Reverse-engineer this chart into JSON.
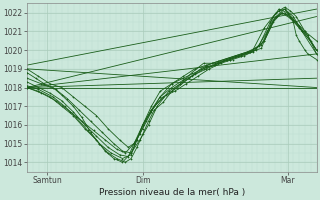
{
  "title": "Pression niveau de la mer( hPa )",
  "xlabel_ticks": [
    "Samtun",
    "Dim",
    "Mar"
  ],
  "xlabel_tick_positions": [
    0.07,
    0.4,
    0.9
  ],
  "ylabel_ticks": [
    1014,
    1015,
    1016,
    1017,
    1018,
    1019,
    1020,
    1021,
    1022
  ],
  "ylim": [
    1013.5,
    1022.5
  ],
  "xlim": [
    0.0,
    1.0
  ],
  "bg_color": "#cce8dc",
  "grid_major_color": "#aaccbb",
  "grid_minor_color": "#bbddd0",
  "line_color": "#1a5e1a",
  "figsize": [
    3.2,
    2.0
  ],
  "dpi": 100,
  "straight_lines": [
    {
      "x": [
        0.0,
        1.0
      ],
      "y": [
        1018.0,
        1018.0
      ]
    },
    {
      "x": [
        0.0,
        1.0
      ],
      "y": [
        1019.0,
        1018.0
      ]
    },
    {
      "x": [
        0.0,
        1.0
      ],
      "y": [
        1018.0,
        1018.5
      ]
    },
    {
      "x": [
        0.0,
        1.0
      ],
      "y": [
        1018.0,
        1019.8
      ]
    },
    {
      "x": [
        0.0,
        1.0
      ],
      "y": [
        1018.0,
        1021.8
      ]
    },
    {
      "x": [
        0.0,
        1.0
      ],
      "y": [
        1019.2,
        1022.2
      ]
    }
  ],
  "spike_curves": [
    {
      "x": [
        0.0,
        0.03,
        0.06,
        0.09,
        0.12,
        0.16,
        0.19,
        0.22,
        0.25,
        0.28,
        0.31,
        0.34,
        0.36,
        0.38,
        0.4,
        0.42,
        0.44,
        0.47,
        0.5,
        0.53,
        0.57,
        0.61,
        0.65,
        0.69,
        0.73,
        0.77,
        0.81,
        0.85,
        0.87,
        0.89,
        0.9,
        0.92,
        0.93,
        0.94,
        0.96,
        0.97,
        1.0
      ],
      "y": [
        1018.8,
        1018.5,
        1018.2,
        1018.0,
        1017.6,
        1017.0,
        1016.4,
        1015.6,
        1015.0,
        1014.5,
        1014.2,
        1014.0,
        1014.2,
        1014.8,
        1015.5,
        1016.2,
        1016.8,
        1017.2,
        1017.8,
        1018.2,
        1018.8,
        1019.3,
        1019.3,
        1019.5,
        1019.7,
        1019.9,
        1020.1,
        1021.8,
        1022.1,
        1022.2,
        1022.0,
        1021.5,
        1020.8,
        1020.5,
        1020.0,
        1019.8,
        1019.5
      ]
    },
    {
      "x": [
        0.0,
        0.04,
        0.08,
        0.12,
        0.16,
        0.2,
        0.24,
        0.27,
        0.3,
        0.33,
        0.36,
        0.38,
        0.4,
        0.43,
        0.46,
        0.5,
        0.54,
        0.58,
        0.62,
        0.66,
        0.7,
        0.74,
        0.78,
        0.82,
        0.86,
        0.89,
        0.91,
        0.93,
        0.96,
        1.0
      ],
      "y": [
        1018.0,
        1017.8,
        1017.5,
        1017.0,
        1016.5,
        1015.8,
        1015.2,
        1014.6,
        1014.2,
        1014.0,
        1014.5,
        1015.2,
        1016.0,
        1016.8,
        1017.5,
        1018.2,
        1018.6,
        1019.0,
        1019.2,
        1019.4,
        1019.6,
        1019.8,
        1020.0,
        1021.2,
        1022.0,
        1022.3,
        1022.1,
        1021.8,
        1021.0,
        1020.0
      ]
    },
    {
      "x": [
        0.0,
        0.04,
        0.08,
        0.12,
        0.16,
        0.2,
        0.24,
        0.28,
        0.32,
        0.35,
        0.37,
        0.39,
        0.41,
        0.44,
        0.48,
        0.52,
        0.56,
        0.6,
        0.64,
        0.68,
        0.72,
        0.76,
        0.8,
        0.84,
        0.87,
        0.9,
        0.93,
        0.96,
        1.0
      ],
      "y": [
        1019.0,
        1018.6,
        1018.2,
        1018.0,
        1017.5,
        1017.0,
        1016.5,
        1015.8,
        1015.2,
        1014.8,
        1015.0,
        1015.5,
        1016.2,
        1017.0,
        1017.6,
        1018.0,
        1018.5,
        1019.0,
        1019.3,
        1019.5,
        1019.7,
        1019.9,
        1020.2,
        1021.5,
        1022.2,
        1022.0,
        1021.5,
        1021.0,
        1020.5
      ]
    },
    {
      "x": [
        0.0,
        0.04,
        0.08,
        0.12,
        0.16,
        0.2,
        0.24,
        0.28,
        0.32,
        0.35,
        0.37,
        0.4,
        0.43,
        0.47,
        0.51,
        0.55,
        0.59,
        0.63,
        0.67,
        0.71,
        0.75,
        0.79,
        0.83,
        0.86,
        0.89,
        0.92,
        0.95,
        0.98,
        1.0
      ],
      "y": [
        1018.3,
        1018.0,
        1017.7,
        1017.3,
        1016.7,
        1016.0,
        1015.4,
        1014.8,
        1014.4,
        1014.3,
        1015.0,
        1016.0,
        1016.8,
        1017.5,
        1017.8,
        1018.2,
        1018.6,
        1019.0,
        1019.3,
        1019.5,
        1019.7,
        1020.0,
        1021.0,
        1021.8,
        1022.2,
        1021.8,
        1021.0,
        1020.5,
        1020.0
      ]
    },
    {
      "x": [
        0.0,
        0.04,
        0.09,
        0.13,
        0.17,
        0.21,
        0.25,
        0.29,
        0.33,
        0.36,
        0.38,
        0.4,
        0.43,
        0.46,
        0.5,
        0.54,
        0.58,
        0.62,
        0.66,
        0.7,
        0.74,
        0.78,
        0.82,
        0.85,
        0.88,
        0.91,
        0.94,
        0.97,
        1.0
      ],
      "y": [
        1018.1,
        1017.9,
        1017.5,
        1017.0,
        1016.4,
        1015.7,
        1015.0,
        1014.5,
        1014.2,
        1014.4,
        1015.2,
        1016.0,
        1017.0,
        1017.8,
        1018.2,
        1018.5,
        1018.8,
        1019.1,
        1019.3,
        1019.5,
        1019.7,
        1019.9,
        1020.5,
        1021.5,
        1022.0,
        1021.7,
        1021.2,
        1020.8,
        1019.8
      ]
    },
    {
      "x": [
        0.0,
        0.05,
        0.1,
        0.14,
        0.18,
        0.22,
        0.26,
        0.3,
        0.33,
        0.36,
        0.39,
        0.42,
        0.45,
        0.49,
        0.53,
        0.57,
        0.61,
        0.65,
        0.69,
        0.73,
        0.77,
        0.81,
        0.85,
        0.88,
        0.91,
        0.94,
        1.0
      ],
      "y": [
        1018.5,
        1018.2,
        1017.9,
        1017.4,
        1016.8,
        1016.2,
        1015.6,
        1015.0,
        1014.6,
        1014.5,
        1015.2,
        1016.0,
        1017.0,
        1017.8,
        1018.2,
        1018.6,
        1019.0,
        1019.2,
        1019.5,
        1019.7,
        1019.9,
        1020.3,
        1021.6,
        1022.0,
        1021.8,
        1021.3,
        1020.0
      ]
    },
    {
      "x": [
        0.0,
        0.05,
        0.1,
        0.15,
        0.19,
        0.23,
        0.27,
        0.31,
        0.34,
        0.37,
        0.4,
        0.43,
        0.46,
        0.5,
        0.54,
        0.58,
        0.62,
        0.66,
        0.7,
        0.74,
        0.78,
        0.82,
        0.86,
        0.89,
        0.92,
        0.95,
        1.0
      ],
      "y": [
        1018.0,
        1017.7,
        1017.3,
        1016.7,
        1016.2,
        1015.7,
        1015.2,
        1014.7,
        1014.5,
        1015.0,
        1015.8,
        1016.7,
        1017.5,
        1018.0,
        1018.4,
        1018.7,
        1019.0,
        1019.3,
        1019.5,
        1019.7,
        1020.0,
        1020.5,
        1021.8,
        1022.0,
        1021.6,
        1021.0,
        1019.8
      ]
    }
  ]
}
